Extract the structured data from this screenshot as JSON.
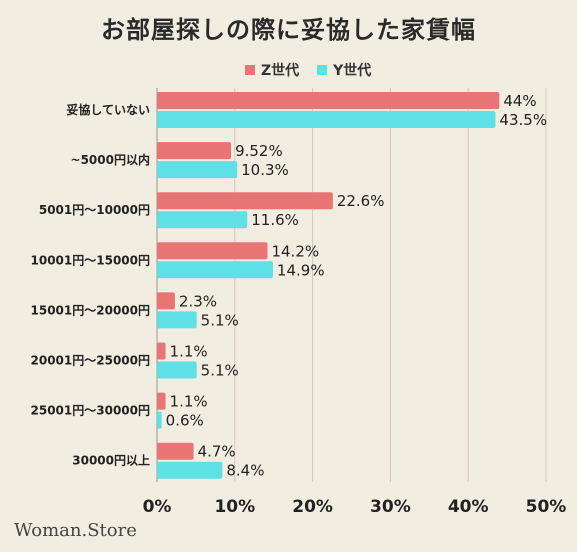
{
  "title": "お部屋探しの際に妥協した家賃幅",
  "brand": "Woman.Store",
  "colors": {
    "z": "#e87474",
    "y": "#5ee0e6",
    "grid": "#cfcabb",
    "background": "#f1ede0"
  },
  "legend": [
    {
      "label": "Z世代",
      "color": "#e87474"
    },
    {
      "label": "Y世代",
      "color": "#5ee0e6"
    }
  ],
  "chart_data": {
    "type": "bar",
    "orientation": "horizontal",
    "categories": [
      "妥協していない",
      "~5000円以内",
      "5001円〜10000円",
      "10001円〜15000円",
      "15001円〜20000円",
      "20001円〜25000円",
      "25001円〜30000円",
      "30000円以上"
    ],
    "series": [
      {
        "name": "Z世代",
        "color": "#e87474",
        "values": [
          44,
          9.52,
          22.6,
          14.2,
          2.3,
          1.1,
          1.1,
          4.7
        ],
        "labels": [
          "44%",
          "9.52%",
          "22.6%",
          "14.2%",
          "2.3%",
          "1.1%",
          "1.1%",
          "4.7%"
        ]
      },
      {
        "name": "Y世代",
        "color": "#5ee0e6",
        "values": [
          43.5,
          10.3,
          11.6,
          14.9,
          5.1,
          5.1,
          0.6,
          8.4
        ],
        "labels": [
          "43.5%",
          "10.3%",
          "11.6%",
          "14.9%",
          "5.1%",
          "5.1%",
          "0.6%",
          "8.4%"
        ]
      }
    ],
    "xlim": [
      0,
      50
    ],
    "xticks": [
      0,
      10,
      20,
      30,
      40,
      50
    ],
    "xtick_labels": [
      "0%",
      "10%",
      "20%",
      "30%",
      "40%",
      "50%"
    ],
    "grid": true,
    "legend_position": "top"
  }
}
